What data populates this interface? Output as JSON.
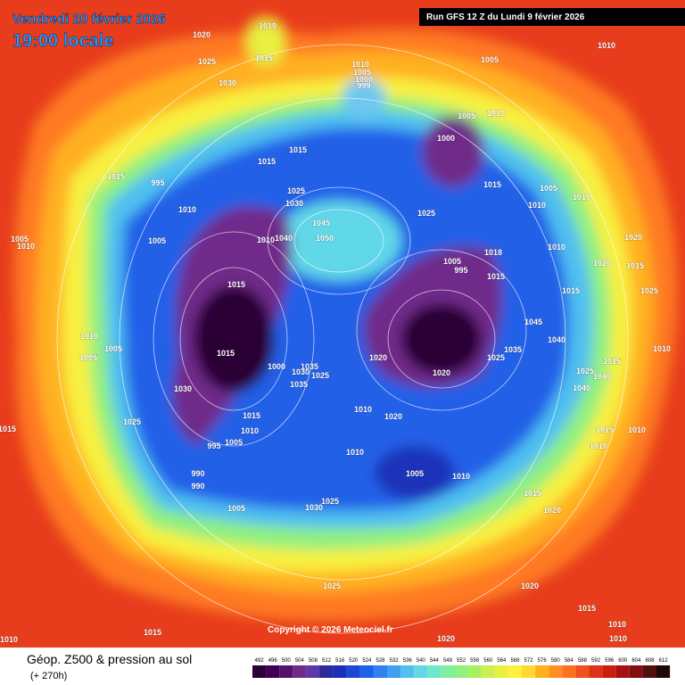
{
  "header": {
    "date": "Vendredi 20 février 2026",
    "time": "19:00 locale",
    "run": "Run GFS 12 Z du Lundi 9 février 2026"
  },
  "footer": {
    "field": "Géop. Z500 & pression au sol",
    "lead": "(+ 270h)",
    "copyright": "Copyright © 2026 Meteociel.fr"
  },
  "scale": {
    "values": [
      492,
      496,
      500,
      504,
      508,
      512,
      516,
      520,
      524,
      528,
      532,
      536,
      540,
      544,
      548,
      552,
      556,
      560,
      564,
      568,
      572,
      576,
      580,
      584,
      588,
      592,
      596,
      600,
      604,
      608,
      612
    ],
    "colors": [
      "#2b0036",
      "#3f0052",
      "#58106e",
      "#702a8a",
      "#5a3aa8",
      "#2a2a9a",
      "#1a30b8",
      "#1a48d8",
      "#2060e8",
      "#3080f0",
      "#40a0f0",
      "#50c0f0",
      "#60d8e8",
      "#70e8c8",
      "#80f0a0",
      "#90f080",
      "#a8f060",
      "#c8f050",
      "#e8f040",
      "#fff040",
      "#ffd830",
      "#ffb020",
      "#ff9020",
      "#ff7020",
      "#f05020",
      "#e03018",
      "#c82010",
      "#a81010",
      "#801010",
      "#501010",
      "#200808"
    ]
  },
  "isobars": [
    "1010",
    "1015",
    "1020",
    "1025",
    "1030",
    "1005",
    "1010",
    "1010",
    "1005",
    "1000",
    "999",
    "1005",
    "1010",
    "1000",
    "1015",
    "1015",
    "1015",
    "995",
    "1025",
    "1030",
    "1045",
    "1050",
    "1040",
    "1010",
    "1005",
    "1010",
    "1015",
    "1005",
    "1010",
    "1010",
    "1025",
    "1005",
    "995",
    "1018",
    "1015",
    "1010",
    "1020",
    "1020",
    "1015",
    "1025",
    "1015",
    "1045",
    "1040",
    "1015",
    "1015",
    "1000",
    "1035",
    "1025",
    "1030",
    "1035",
    "1020",
    "1025",
    "1035",
    "1020",
    "1030",
    "1010",
    "1005",
    "1005",
    "1025",
    "1010",
    "1020",
    "1015",
    "1010",
    "1005",
    "995",
    "1010",
    "1005",
    "1010",
    "990",
    "990",
    "1005",
    "1030",
    "1025",
    "1015",
    "1020",
    "1025",
    "1020",
    "1015",
    "1015",
    "1010",
    "1010",
    "1020",
    "1010",
    "1015",
    "1005",
    "1010",
    "1025",
    "1040",
    "1015",
    "1010",
    "1015",
    "1010",
    "1010",
    "1040"
  ]
}
